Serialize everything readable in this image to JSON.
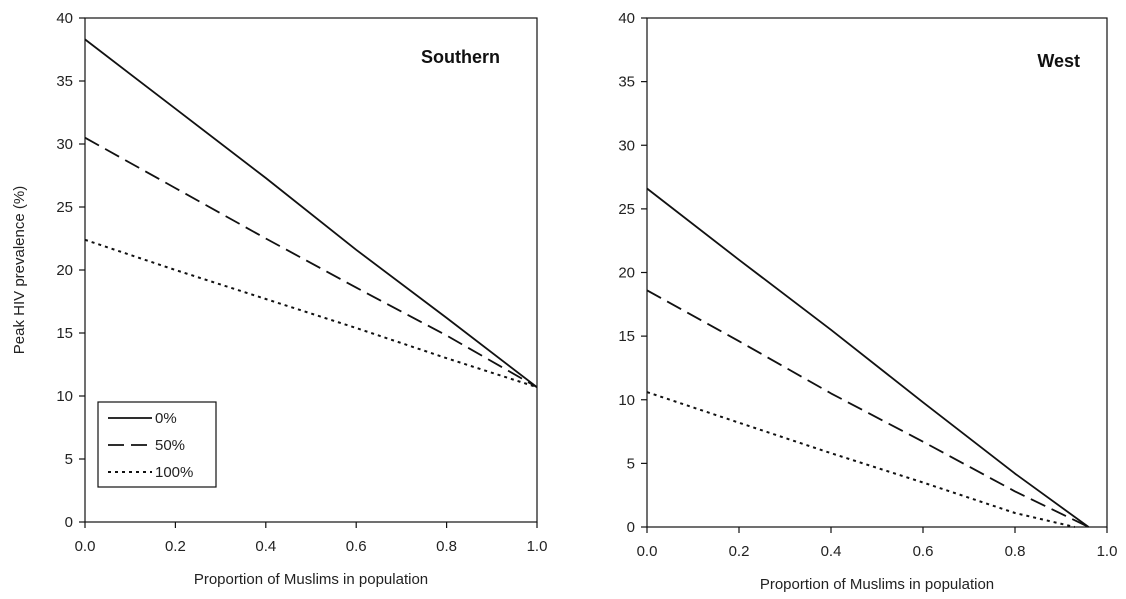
{
  "chart_data": [
    {
      "type": "line",
      "title": "Southern",
      "xlabel": "Proportion of Muslims in population",
      "ylabel": "Peak HIV prevalence (%)",
      "xlim": [
        0.0,
        1.0
      ],
      "ylim": [
        0,
        40
      ],
      "x_ticks": [
        "0.0",
        "0.2",
        "0.4",
        "0.6",
        "0.8",
        "1.0"
      ],
      "y_ticks": [
        "0",
        "5",
        "10",
        "15",
        "20",
        "25",
        "30",
        "35",
        "40"
      ],
      "grid": false,
      "legend_position": "bottom-left",
      "series": [
        {
          "name": "0%",
          "style": "solid",
          "x": [
            0.0,
            0.2,
            0.4,
            0.6,
            0.8,
            1.0
          ],
          "y": [
            38.3,
            32.8,
            27.3,
            21.6,
            16.2,
            10.7
          ]
        },
        {
          "name": "50%",
          "style": "dashed",
          "x": [
            0.0,
            0.2,
            0.4,
            0.6,
            0.8,
            1.0
          ],
          "y": [
            30.5,
            26.5,
            22.5,
            18.6,
            14.8,
            10.7
          ]
        },
        {
          "name": "100%",
          "style": "dotted",
          "x": [
            0.0,
            0.2,
            0.4,
            0.6,
            0.8,
            1.0
          ],
          "y": [
            22.4,
            20.0,
            17.7,
            15.4,
            13.0,
            10.7
          ]
        }
      ]
    },
    {
      "type": "line",
      "title": "West",
      "xlabel": "Proportion of Muslims in population",
      "ylabel": "",
      "xlim": [
        0.0,
        1.0
      ],
      "ylim": [
        0,
        40
      ],
      "x_ticks": [
        "0.0",
        "0.2",
        "0.4",
        "0.6",
        "0.8",
        "1.0"
      ],
      "y_ticks": [
        "0",
        "5",
        "10",
        "15",
        "20",
        "25",
        "30",
        "35",
        "40"
      ],
      "grid": false,
      "series": [
        {
          "name": "0%",
          "style": "solid",
          "x": [
            0.0,
            0.2,
            0.4,
            0.6,
            0.8,
            0.96
          ],
          "y": [
            26.6,
            21.0,
            15.5,
            9.8,
            4.2,
            0.0
          ]
        },
        {
          "name": "50%",
          "style": "dashed",
          "x": [
            0.0,
            0.2,
            0.4,
            0.6,
            0.8,
            0.96
          ],
          "y": [
            18.6,
            14.6,
            10.5,
            6.7,
            2.8,
            0.0
          ]
        },
        {
          "name": "100%",
          "style": "dotted",
          "x": [
            0.0,
            0.2,
            0.4,
            0.6,
            0.8,
            0.93
          ],
          "y": [
            10.6,
            8.2,
            5.8,
            3.5,
            1.1,
            0.0
          ]
        }
      ]
    }
  ]
}
